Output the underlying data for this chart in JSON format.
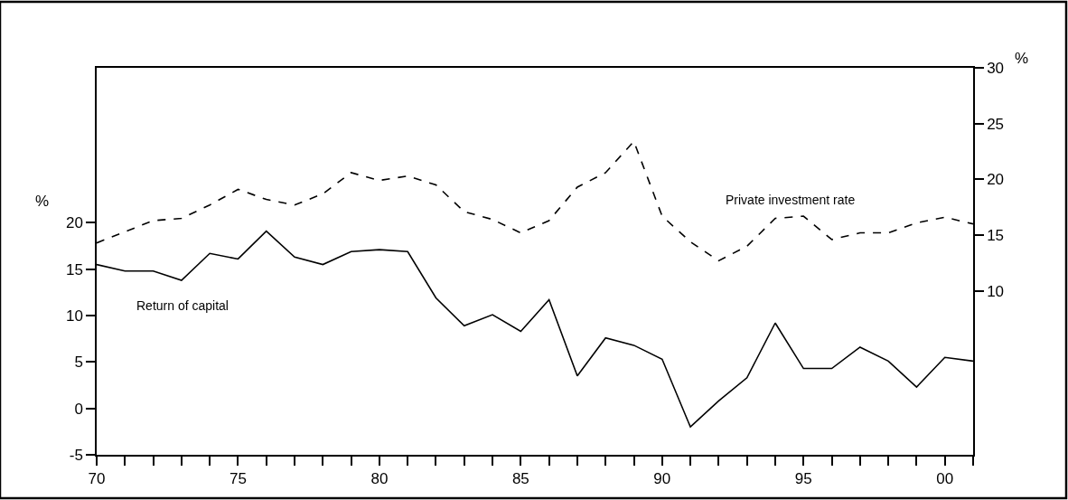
{
  "chart_data": {
    "type": "line",
    "ylabel": "%",
    "y2label": "%",
    "x": [
      1970,
      1971,
      1972,
      1973,
      1974,
      1975,
      1976,
      1977,
      1978,
      1979,
      1980,
      1981,
      1982,
      1983,
      1984,
      1985,
      1986,
      1987,
      1988,
      1989,
      1990,
      1991,
      1992,
      1993,
      1994,
      1995,
      1996,
      1997,
      1998,
      1999,
      2000,
      2001
    ],
    "series": [
      {
        "name": "Return of capital",
        "color": "#000000",
        "line_style": "solid",
        "axis": "y",
        "values": [
          15.5,
          14.8,
          14.8,
          13.8,
          16.7,
          16.1,
          19.1,
          16.3,
          15.5,
          16.9,
          17.1,
          16.9,
          11.9,
          8.9,
          10.1,
          8.3,
          11.7,
          3.5,
          7.6,
          6.8,
          5.3,
          -2.0,
          0.8,
          3.3,
          9.2,
          4.3,
          4.3,
          6.6,
          5.1,
          2.3,
          5.5,
          5.1
        ]
      },
      {
        "name": "Private investment rate",
        "color": "#000000",
        "line_style": "dashed",
        "axis": "y2",
        "values": [
          14.3,
          15.3,
          16.3,
          16.5,
          17.7,
          19.1,
          18.2,
          17.7,
          18.7,
          20.6,
          19.9,
          20.3,
          19.5,
          17.1,
          16.4,
          15.2,
          16.3,
          19.3,
          20.6,
          23.4,
          16.7,
          14.4,
          12.7,
          14.0,
          16.5,
          16.7,
          14.6,
          15.2,
          15.2,
          16.1,
          16.6,
          16.0
        ]
      }
    ],
    "xlim": [
      1970,
      2001
    ],
    "xticks": [
      {
        "value": 1970,
        "label": "70"
      },
      {
        "value": 1971,
        "label": null
      },
      {
        "value": 1972,
        "label": null
      },
      {
        "value": 1973,
        "label": null
      },
      {
        "value": 1974,
        "label": null
      },
      {
        "value": 1975,
        "label": "75"
      },
      {
        "value": 1976,
        "label": null
      },
      {
        "value": 1977,
        "label": null
      },
      {
        "value": 1978,
        "label": null
      },
      {
        "value": 1979,
        "label": null
      },
      {
        "value": 1980,
        "label": "80"
      },
      {
        "value": 1981,
        "label": null
      },
      {
        "value": 1982,
        "label": null
      },
      {
        "value": 1983,
        "label": null
      },
      {
        "value": 1984,
        "label": null
      },
      {
        "value": 1985,
        "label": "85"
      },
      {
        "value": 1986,
        "label": null
      },
      {
        "value": 1987,
        "label": null
      },
      {
        "value": 1988,
        "label": null
      },
      {
        "value": 1989,
        "label": null
      },
      {
        "value": 1990,
        "label": "90"
      },
      {
        "value": 1991,
        "label": null
      },
      {
        "value": 1992,
        "label": null
      },
      {
        "value": 1993,
        "label": null
      },
      {
        "value": 1994,
        "label": null
      },
      {
        "value": 1995,
        "label": "95"
      },
      {
        "value": 1996,
        "label": null
      },
      {
        "value": 1997,
        "label": null
      },
      {
        "value": 1998,
        "label": null
      },
      {
        "value": 1999,
        "label": null
      },
      {
        "value": 2000,
        "label": "00"
      },
      {
        "value": 2001,
        "label": null
      }
    ],
    "ylim": [
      -5,
      36.7
    ],
    "yticks": [
      -5,
      0,
      5,
      10,
      15,
      20
    ],
    "y2lim": [
      -4.7,
      30
    ],
    "y2ticks": [
      10,
      15,
      20,
      25,
      30
    ],
    "grid": false,
    "legend": false,
    "marker": "none"
  }
}
